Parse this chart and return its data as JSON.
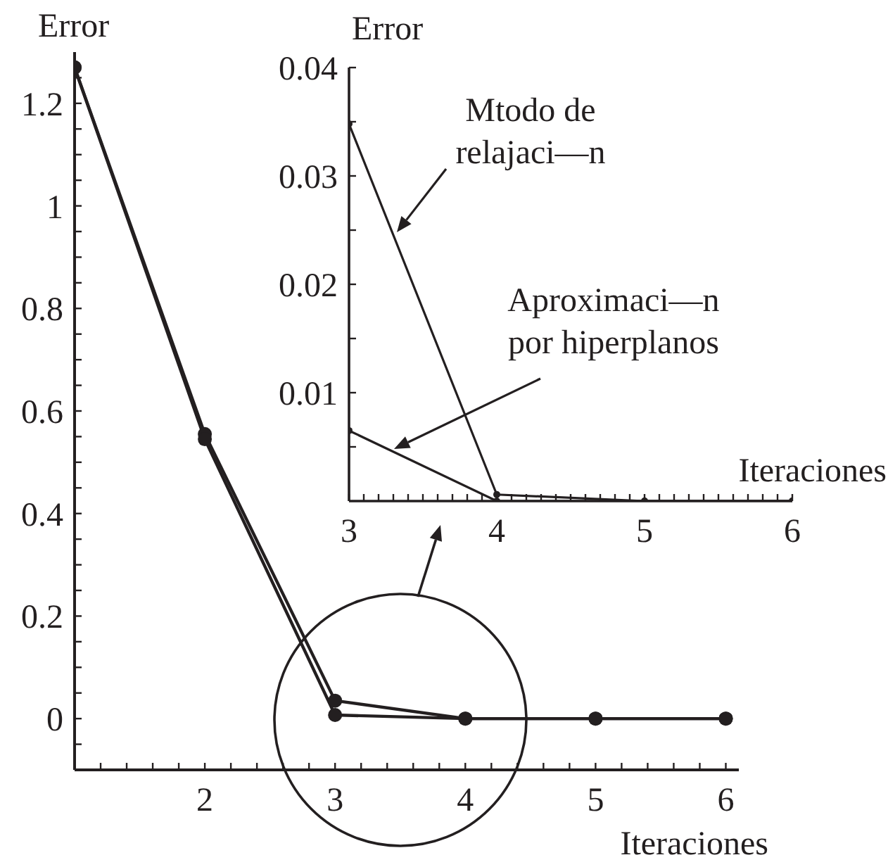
{
  "chart_data": [
    {
      "type": "line",
      "xlabel": "Iteraciones",
      "ylabel": "Error",
      "x": [
        1,
        2,
        3,
        4,
        5,
        6
      ],
      "series": [
        {
          "color": "#231f20",
          "values": [
            1.27,
            0.555,
            0.035,
            0,
            0,
            0
          ]
        },
        {
          "color": "#231f20",
          "values": [
            1.27,
            0.545,
            0.007,
            0,
            0,
            0
          ]
        }
      ],
      "xlim": [
        1,
        6.1
      ],
      "xticks": [
        {
          "value": 1.2,
          "label": null
        },
        {
          "value": 1.4,
          "label": null
        },
        {
          "value": 1.6,
          "label": null
        },
        {
          "value": 1.8,
          "label": null
        },
        2,
        {
          "value": 2.2,
          "label": null
        },
        {
          "value": 2.4,
          "label": null
        },
        {
          "value": 2.6,
          "label": null
        },
        {
          "value": 2.8,
          "label": null
        },
        3,
        {
          "value": 3.2,
          "label": null
        },
        {
          "value": 3.4,
          "label": null
        },
        {
          "value": 3.6,
          "label": null
        },
        {
          "value": 3.8,
          "label": null
        },
        4,
        {
          "value": 4.2,
          "label": null
        },
        {
          "value": 4.4,
          "label": null
        },
        {
          "value": 4.6,
          "label": null
        },
        {
          "value": 4.8,
          "label": null
        },
        5,
        {
          "value": 5.2,
          "label": null
        },
        {
          "value": 5.4,
          "label": null
        },
        {
          "value": 5.6,
          "label": null
        },
        {
          "value": 5.8,
          "label": null
        },
        6
      ],
      "ylim": [
        -0.1,
        1.3
      ],
      "yticks": [
        {
          "value": -0.05,
          "label": null
        },
        0,
        {
          "value": 0.05,
          "label": null
        },
        {
          "value": 0.1,
          "label": null
        },
        {
          "value": 0.15,
          "label": null
        },
        0.2,
        {
          "value": 0.25,
          "label": null
        },
        {
          "value": 0.3,
          "label": null
        },
        {
          "value": 0.35,
          "label": null
        },
        0.4,
        {
          "value": 0.45,
          "label": null
        },
        {
          "value": 0.5,
          "label": null
        },
        {
          "value": 0.55,
          "label": null
        },
        0.6,
        {
          "value": 0.65,
          "label": null
        },
        {
          "value": 0.7,
          "label": null
        },
        {
          "value": 0.75,
          "label": null
        },
        0.8,
        {
          "value": 0.85,
          "label": null
        },
        {
          "value": 0.9,
          "label": null
        },
        {
          "value": 0.95,
          "label": null
        },
        1,
        {
          "value": 1.05,
          "label": null
        },
        {
          "value": 1.1,
          "label": null
        },
        {
          "value": 1.15,
          "label": null
        },
        1.2,
        {
          "value": 1.25,
          "label": null
        }
      ],
      "marker": "circle"
    },
    {
      "type": "line",
      "xlabel": "Iteraciones",
      "ylabel": "Error",
      "x": [
        3,
        4,
        5,
        6
      ],
      "series": [
        {
          "name": "Mtodo de relajaci—n",
          "color": "#231f20",
          "values": [
            0.0348,
            0.0006,
            0,
            0
          ]
        },
        {
          "name": "Aproximaci—n por hiperplanos",
          "color": "#231f20",
          "values": [
            0.0065,
            0,
            0,
            0
          ]
        }
      ],
      "xlim": [
        3,
        6
      ],
      "xticks": [
        3,
        {
          "value": 3.1,
          "label": null
        },
        {
          "value": 3.2,
          "label": null
        },
        {
          "value": 3.3,
          "label": null
        },
        {
          "value": 3.4,
          "label": null
        },
        {
          "value": 3.5,
          "label": null
        },
        {
          "value": 3.6,
          "label": null
        },
        {
          "value": 3.7,
          "label": null
        },
        {
          "value": 3.8,
          "label": null
        },
        {
          "value": 3.9,
          "label": null
        },
        4,
        {
          "value": 4.1,
          "label": null
        },
        {
          "value": 4.2,
          "label": null
        },
        {
          "value": 4.3,
          "label": null
        },
        {
          "value": 4.4,
          "label": null
        },
        {
          "value": 4.5,
          "label": null
        },
        {
          "value": 4.6,
          "label": null
        },
        {
          "value": 4.7,
          "label": null
        },
        {
          "value": 4.8,
          "label": null
        },
        {
          "value": 4.9,
          "label": null
        },
        5,
        {
          "value": 5.1,
          "label": null
        },
        {
          "value": 5.2,
          "label": null
        },
        {
          "value": 5.3,
          "label": null
        },
        {
          "value": 5.4,
          "label": null
        },
        {
          "value": 5.5,
          "label": null
        },
        {
          "value": 5.6,
          "label": null
        },
        {
          "value": 5.7,
          "label": null
        },
        {
          "value": 5.8,
          "label": null
        },
        {
          "value": 5.9,
          "label": null
        },
        6
      ],
      "ylim": [
        0,
        0.04
      ],
      "yticks": [
        {
          "value": 0.005,
          "label": null
        },
        0.01,
        {
          "value": 0.015,
          "label": null
        },
        0.02,
        {
          "value": 0.025,
          "label": null
        },
        0.03,
        {
          "value": 0.035,
          "label": null
        },
        0.04
      ],
      "marker": "circle"
    }
  ]
}
